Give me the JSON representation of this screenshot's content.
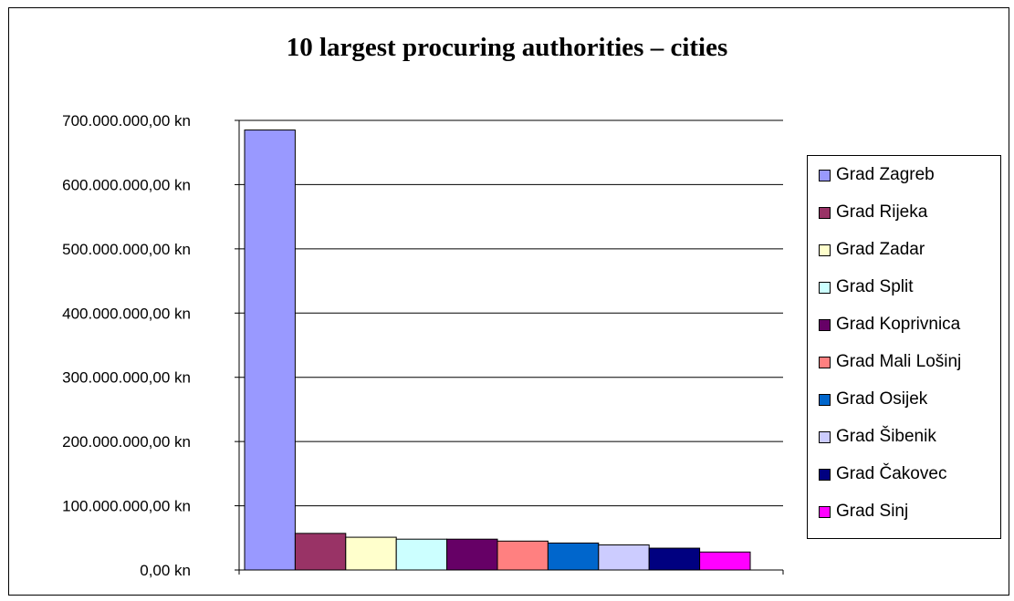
{
  "chart_data": {
    "type": "bar",
    "title": "10 largest procuring authorities – cities",
    "xlabel": "",
    "ylabel": "",
    "ylim": [
      0,
      700000000
    ],
    "yticks": [
      {
        "value": 0,
        "label": "0,00 kn"
      },
      {
        "value": 100000000,
        "label": "100.000.000,00 kn"
      },
      {
        "value": 200000000,
        "label": "200.000.000,00 kn"
      },
      {
        "value": 300000000,
        "label": "300.000.000,00 kn"
      },
      {
        "value": 400000000,
        "label": "400.000.000,00 kn"
      },
      {
        "value": 500000000,
        "label": "500.000.000,00 kn"
      },
      {
        "value": 600000000,
        "label": "600.000.000,00 kn"
      },
      {
        "value": 700000000,
        "label": "700.000.000,00 kn"
      }
    ],
    "grid": true,
    "legend_position": "right",
    "series": [
      {
        "name": "Grad Zagreb",
        "value": 685000000,
        "color": "#9999ff"
      },
      {
        "name": "Grad Rijeka",
        "value": 57000000,
        "color": "#993366"
      },
      {
        "name": "Grad Zadar",
        "value": 51000000,
        "color": "#ffffcc"
      },
      {
        "name": "Grad Split",
        "value": 48000000,
        "color": "#ccffff"
      },
      {
        "name": "Grad Koprivnica",
        "value": 48000000,
        "color": "#660066"
      },
      {
        "name": "Grad Mali Lošinj",
        "value": 45000000,
        "color": "#ff8080"
      },
      {
        "name": "Grad Osijek",
        "value": 42000000,
        "color": "#0066cc"
      },
      {
        "name": "Grad Šibenik",
        "value": 39000000,
        "color": "#ccccff"
      },
      {
        "name": "Grad Čakovec",
        "value": 34000000,
        "color": "#000080"
      },
      {
        "name": "Grad Sinj",
        "value": 28000000,
        "color": "#ff00ff"
      }
    ]
  }
}
